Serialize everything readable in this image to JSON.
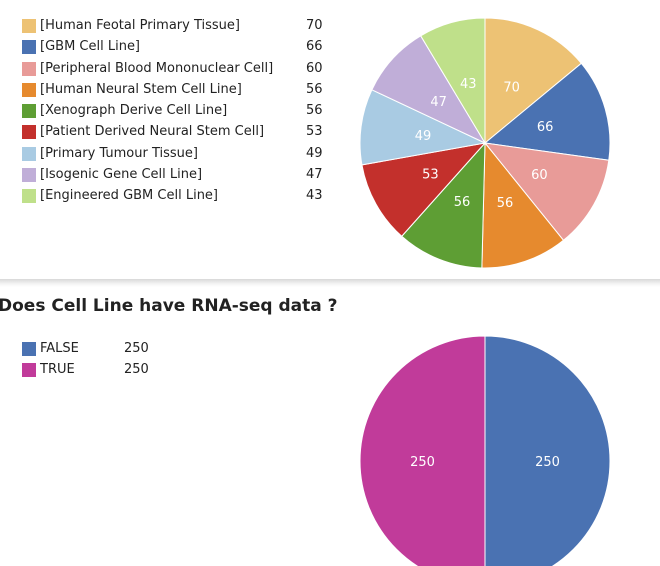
{
  "chart_data": [
    {
      "type": "pie",
      "title": "",
      "start": "12 o'clock, clockwise",
      "slices": [
        {
          "label": "[Human Feotal Primary Tissue]",
          "value": 70,
          "color": "#EDC274"
        },
        {
          "label": "[GBM Cell Line]",
          "value": 66,
          "color": "#4A72B2"
        },
        {
          "label": "[Peripheral Blood Mononuclear Cell]",
          "value": 60,
          "color": "#E89B98"
        },
        {
          "label": "[Human Neural Stem Cell Line]",
          "value": 56,
          "color": "#E68A2E"
        },
        {
          "label": "[Xenograph Derive Cell Line]",
          "value": 56,
          "color": "#5E9E34"
        },
        {
          "label": "[Patient Derived Neural Stem Cell]",
          "value": 53,
          "color": "#C3302C"
        },
        {
          "label": "[Primary Tumour Tissue]",
          "value": 49,
          "color": "#A9CBE3"
        },
        {
          "label": "[Isogenic Gene Cell Line]",
          "value": 47,
          "color": "#C0AED8"
        },
        {
          "label": "[Engineered GBM Cell Line]",
          "value": 43,
          "color": "#BFE08A"
        }
      ]
    },
    {
      "type": "pie",
      "title": "Does Cell Line have RNA-seq data ?",
      "start": "12 o'clock, clockwise",
      "slices": [
        {
          "label": "FALSE",
          "value": 250,
          "color": "#4A72B2"
        },
        {
          "label": "TRUE",
          "value": 250,
          "color": "#C13B9A"
        }
      ]
    }
  ]
}
